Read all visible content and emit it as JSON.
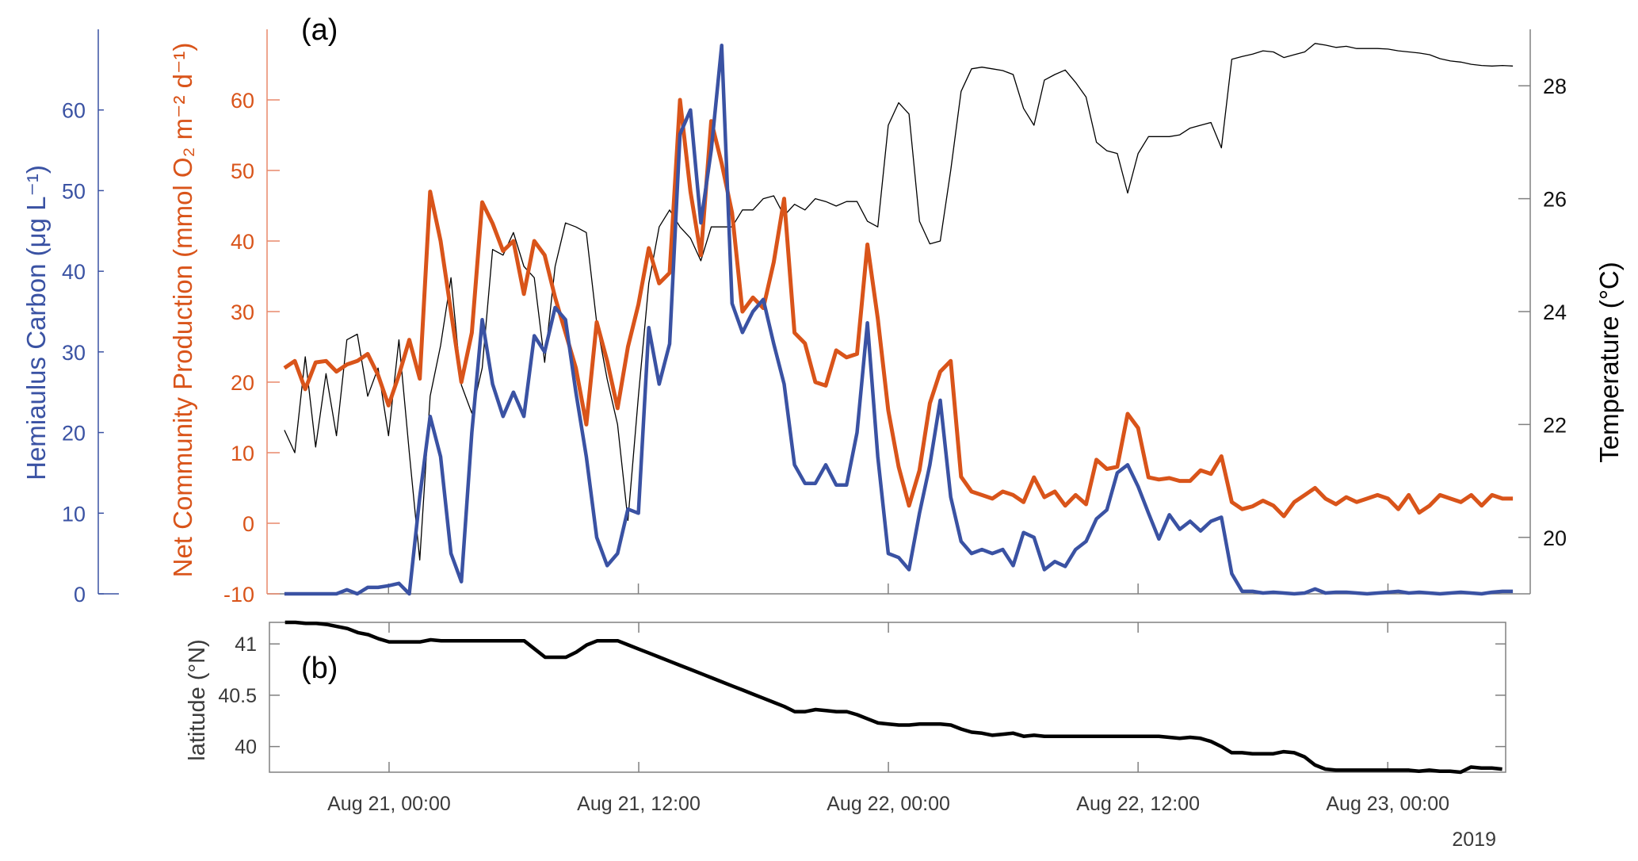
{
  "chart_data": [
    {
      "type": "line",
      "panel_label": "(a)",
      "xlim": [
        "2019-08-20 18:10",
        "2019-08-23 06:50"
      ],
      "xticks": [
        {
          "t": "2019-08-21 00:00",
          "label": "Aug 21, 00:00"
        },
        {
          "t": "2019-08-21 12:00",
          "label": "Aug 21, 12:00"
        },
        {
          "t": "2019-08-22 00:00",
          "label": "Aug 22, 00:00"
        },
        {
          "t": "2019-08-22 12:00",
          "label": "Aug 22, 12:00"
        },
        {
          "t": "2019-08-23 00:00",
          "label": "Aug 23, 00:00"
        }
      ],
      "axes": {
        "hemiaulus": {
          "label": "Hemiaulus Carbon (μg L⁻¹)",
          "ylim": [
            0,
            70
          ],
          "ticks": [
            0,
            10,
            20,
            30,
            40,
            50,
            60
          ],
          "color": "#3a52a3",
          "side": "left-outer"
        },
        "ncp": {
          "label": "Net Community Production (mmol O₂ m⁻² d⁻¹)",
          "ylim": [
            -10,
            70
          ],
          "ticks": [
            -10,
            0,
            10,
            20,
            30,
            40,
            50,
            60
          ],
          "color": "#d9541a",
          "side": "left-inner"
        },
        "temperature": {
          "label": "Temperature (°C)",
          "ylim": [
            19,
            29
          ],
          "ticks": [
            20,
            22,
            24,
            26,
            28
          ],
          "color": "#000000",
          "side": "right"
        }
      },
      "series": [
        {
          "axis": "temperature",
          "color": "#000000",
          "t0": "2019-08-20 19:00",
          "step_minutes": 30,
          "values": [
            21.9,
            21.5,
            23.2,
            21.6,
            22.9,
            21.8,
            23.5,
            23.6,
            22.5,
            23,
            21.8,
            23.5,
            21.5,
            19.6,
            22.5,
            23.4,
            24.6,
            22.7,
            22.2,
            23,
            25.1,
            25,
            25.4,
            24.8,
            24.6,
            23.1,
            24.8,
            25.57,
            25.5,
            25.4,
            23.8,
            22.8,
            22,
            20.3,
            22.5,
            24.5,
            25.5,
            25.8,
            25.5,
            25.3,
            24.9,
            25.5,
            25.5,
            25.5,
            25.8,
            25.8,
            26,
            26.05,
            25.7,
            25.9,
            25.8,
            26,
            25.95,
            25.87,
            25.95,
            25.95,
            25.6,
            25.5,
            27.3,
            27.7,
            27.5,
            25.6,
            25.2,
            25.25,
            26.5,
            27.9,
            28.3,
            28.33,
            28.3,
            28.27,
            28.2,
            27.6,
            27.3,
            28.1,
            28.2,
            28.28,
            28.06,
            27.8,
            27.0,
            26.85,
            26.8,
            26.1,
            26.8,
            27.1,
            27.1,
            27.1,
            27.13,
            27.25,
            27.3,
            27.35,
            26.9,
            28.47,
            28.52,
            28.56,
            28.62,
            28.6,
            28.5,
            28.55,
            28.6,
            28.75,
            28.72,
            28.68,
            28.7,
            28.66,
            28.66,
            28.66,
            28.65,
            28.62,
            28.6,
            28.58,
            28.55,
            28.48,
            28.44,
            28.42,
            28.38,
            28.36,
            28.35,
            28.36,
            28.35
          ]
        },
        {
          "axis": "ncp",
          "color": "#d9541a",
          "t0": "2019-08-20 19:00",
          "step_minutes": 30,
          "values": [
            22,
            23,
            19,
            22.8,
            23,
            21.5,
            22.5,
            23,
            24,
            21,
            16.7,
            21,
            26,
            20.5,
            47,
            40,
            30,
            20,
            27,
            45.5,
            42.5,
            38.6,
            40,
            32.5,
            40,
            38,
            32,
            27,
            22,
            14,
            28.5,
            23,
            16.3,
            25,
            31,
            39,
            34,
            35.5,
            60,
            47,
            38,
            57,
            51,
            44,
            30,
            32,
            30.5,
            37,
            46,
            27,
            25.5,
            20,
            19.5,
            24.5,
            23.5,
            24,
            39.5,
            29,
            16,
            8,
            2.5,
            7.5,
            17,
            21.5,
            23,
            6.6,
            4.5,
            4,
            3.5,
            4.5,
            4,
            3,
            6.5,
            3.7,
            4.5,
            2.5,
            4,
            2.7,
            9,
            7.7,
            8,
            15.5,
            13.5,
            6.5,
            6.2,
            6.4,
            6,
            6,
            7.5,
            7,
            9.5,
            3,
            2,
            2.4,
            3.2,
            2.5,
            1,
            3,
            4,
            5,
            3.5,
            2.7,
            3.7,
            3,
            3.5,
            4,
            3.5,
            2,
            4,
            1.5,
            2.5,
            4,
            3.5,
            3,
            4,
            2.5,
            4,
            3.5,
            3.5
          ]
        },
        {
          "axis": "hemiaulus",
          "color": "#3a52a3",
          "t0": "2019-08-20 19:00",
          "step_minutes": 30,
          "values": [
            0,
            0,
            0,
            0,
            0,
            0,
            0.5,
            0,
            0.8,
            0.8,
            1,
            1.3,
            0,
            12,
            22,
            17,
            5,
            1.5,
            20,
            34,
            26,
            22,
            25,
            22,
            32,
            30,
            35.5,
            34,
            25,
            17,
            7,
            3.5,
            5,
            10.5,
            10,
            33,
            26,
            31,
            57,
            60,
            46,
            55,
            68,
            36,
            32.4,
            35,
            36.5,
            31,
            26,
            16,
            13.7,
            13.7,
            16,
            13.5,
            13.5,
            20,
            33.6,
            17,
            5,
            4.5,
            3,
            10,
            16,
            24,
            12,
            6.5,
            5,
            5.5,
            5,
            5.5,
            3.5,
            7.6,
            7,
            3,
            4,
            3.4,
            5.5,
            6.5,
            9.3,
            10.4,
            15,
            16,
            13.3,
            10,
            6.8,
            9.8,
            8,
            9,
            7.8,
            9,
            9.5,
            2.5,
            0.3,
            0.3,
            0.1,
            0.2,
            0.1,
            0,
            0.1,
            0.6,
            0.1,
            0.2,
            0.2,
            0.1,
            0,
            0.1,
            0.2,
            0.3,
            0.1,
            0.2,
            0.1,
            0,
            0.1,
            0.2,
            0.1,
            0,
            0.2,
            0.3,
            0.3
          ]
        }
      ]
    },
    {
      "type": "line",
      "panel_label": "(b)",
      "xlim": [
        "2019-08-20 18:15",
        "2019-08-23 05:40"
      ],
      "year_label": "2019",
      "axes": {
        "latitude": {
          "label": "latitude (°N)",
          "ylim": [
            39.75,
            41.21
          ],
          "ticks": [
            40,
            40.5,
            41
          ],
          "color": "#000000"
        }
      },
      "series": [
        {
          "axis": "latitude",
          "color": "#000000",
          "t0": "2019-08-20 19:00",
          "step_minutes": 30,
          "values": [
            41.21,
            41.21,
            41.2,
            41.2,
            41.19,
            41.17,
            41.15,
            41.11,
            41.09,
            41.05,
            41.02,
            41.02,
            41.02,
            41.02,
            41.04,
            41.03,
            41.03,
            41.03,
            41.03,
            41.03,
            41.03,
            41.03,
            41.03,
            41.03,
            40.95,
            40.87,
            40.87,
            40.87,
            40.92,
            40.99,
            41.03,
            41.03,
            41.03,
            40.99,
            40.95,
            40.91,
            40.87,
            40.83,
            40.79,
            40.75,
            40.71,
            40.67,
            40.63,
            40.59,
            40.55,
            40.51,
            40.47,
            40.43,
            40.39,
            40.34,
            40.34,
            40.36,
            40.35,
            40.34,
            40.34,
            40.31,
            40.27,
            40.23,
            40.22,
            40.21,
            40.21,
            40.22,
            40.22,
            40.22,
            40.21,
            40.17,
            40.14,
            40.13,
            40.11,
            40.12,
            40.13,
            40.1,
            40.11,
            40.1,
            40.1,
            40.1,
            40.1,
            40.1,
            40.1,
            40.1,
            40.1,
            40.1,
            40.1,
            40.1,
            40.1,
            40.09,
            40.08,
            40.09,
            40.08,
            40.05,
            40.0,
            39.94,
            39.94,
            39.93,
            39.93,
            39.93,
            39.95,
            39.94,
            39.9,
            39.82,
            39.78,
            39.77,
            39.77,
            39.77,
            39.77,
            39.77,
            39.77,
            39.77,
            39.77,
            39.76,
            39.77,
            39.76,
            39.76,
            39.75,
            39.8,
            39.79,
            39.79,
            39.78
          ]
        }
      ]
    }
  ]
}
